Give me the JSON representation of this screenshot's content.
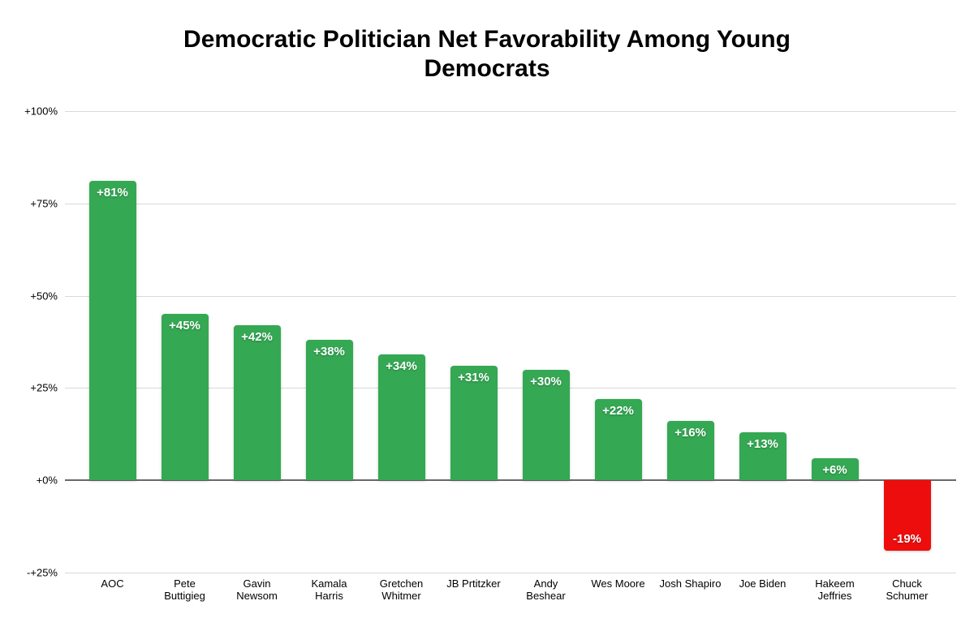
{
  "chart_data": {
    "type": "bar",
    "title": "Democratic Politician Net Favorability Among Young Democrats",
    "categories": [
      "AOC",
      "Pete Buttigieg",
      "Gavin Newsom",
      "Kamala Harris",
      "Gretchen Whitmer",
      "JB Prtitzker",
      "Andy Beshear",
      "Wes Moore",
      "Josh Shapiro",
      "Joe Biden",
      "Hakeem Jeffries",
      "Chuck Schumer"
    ],
    "category_lines": [
      [
        "AOC"
      ],
      [
        "Pete",
        "Buttigieg"
      ],
      [
        "Gavin",
        "Newsom"
      ],
      [
        "Kamala",
        "Harris"
      ],
      [
        "Gretchen",
        "Whitmer"
      ],
      [
        "JB Prtitzker"
      ],
      [
        "Andy",
        "Beshear"
      ],
      [
        "Wes Moore"
      ],
      [
        "Josh Shapiro"
      ],
      [
        "Joe Biden"
      ],
      [
        "Hakeem",
        "Jeffries"
      ],
      [
        "Chuck",
        "Schumer"
      ]
    ],
    "values": [
      81,
      45,
      42,
      38,
      34,
      31,
      30,
      22,
      16,
      13,
      6,
      -19
    ],
    "value_labels": [
      "+81%",
      "+45%",
      "+42%",
      "+38%",
      "+34%",
      "+31%",
      "+30%",
      "+22%",
      "+16%",
      "+13%",
      "+6%",
      "-19%"
    ],
    "xlabel": "",
    "ylabel": "",
    "ylim": [
      -25,
      100
    ],
    "y_ticks": [
      100,
      75,
      50,
      25,
      0,
      -25
    ],
    "y_tick_labels": [
      "+100%",
      "+75%",
      "+50%",
      "+25%",
      "+0%",
      "-+25%"
    ],
    "grid": "horizontal-on",
    "legend": "none",
    "colors": {
      "positive_bar": "#34a853",
      "negative_bar": "#ee0d0d",
      "gridline": "#d9d9d9",
      "zero_line": "#696969",
      "bar_label_text": "#ffffff",
      "axis_text": "#000000",
      "title_text": "#000000",
      "background": "#ffffff"
    }
  }
}
